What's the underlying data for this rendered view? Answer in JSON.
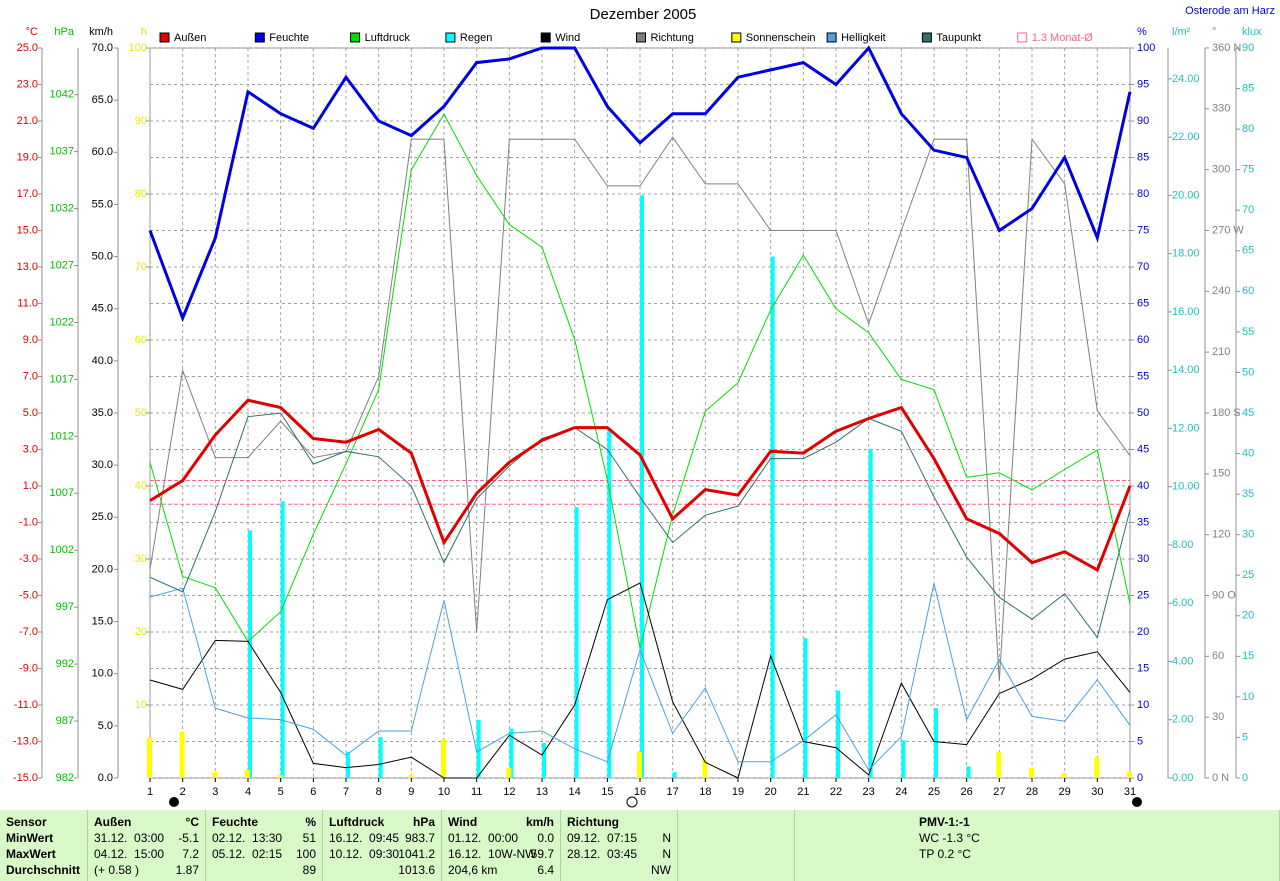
{
  "chart_data": {
    "type": "line",
    "title": "Dezember 2005",
    "location": "Osterode am Harz",
    "x": [
      1,
      2,
      3,
      4,
      5,
      6,
      7,
      8,
      9,
      10,
      11,
      12,
      13,
      14,
      15,
      16,
      17,
      18,
      19,
      20,
      21,
      22,
      23,
      24,
      25,
      26,
      27,
      28,
      29,
      30,
      31
    ],
    "xlim": [
      1,
      31
    ],
    "xticks": [
      1,
      2,
      3,
      4,
      5,
      6,
      7,
      8,
      9,
      10,
      11,
      12,
      13,
      14,
      15,
      16,
      17,
      18,
      19,
      20,
      21,
      22,
      23,
      24,
      25,
      26,
      27,
      28,
      29,
      30,
      31
    ],
    "grid": true,
    "axes": [
      {
        "unit": "°C",
        "color": "#e00000",
        "ylim": [
          -15,
          25
        ],
        "yticks": [
          {
            "value": -15,
            "label": "-15.0"
          },
          {
            "value": -13,
            "label": "-13.0"
          },
          {
            "value": -11,
            "label": "-11.0"
          },
          {
            "value": -9,
            "label": "-9.0"
          },
          {
            "value": -7,
            "label": "-7.0"
          },
          {
            "value": -5,
            "label": "-5.0"
          },
          {
            "value": -3,
            "label": "-3.0"
          },
          {
            "value": -1,
            "label": "-1.0"
          },
          {
            "value": 1,
            "label": "1.0"
          },
          {
            "value": 3,
            "label": "3.0"
          },
          {
            "value": 5,
            "label": "5.0"
          },
          {
            "value": 7,
            "label": "7.0"
          },
          {
            "value": 9,
            "label": "9.0"
          },
          {
            "value": 11,
            "label": "11.0"
          },
          {
            "value": 13,
            "label": "13.0"
          },
          {
            "value": 15,
            "label": "15.0"
          },
          {
            "value": 17,
            "label": "17.0"
          },
          {
            "value": 19,
            "label": "19.0"
          },
          {
            "value": 21,
            "label": "21.0"
          },
          {
            "value": 23,
            "label": "23.0"
          },
          {
            "value": 25,
            "label": "25.0"
          }
        ]
      },
      {
        "unit": "hPa",
        "color": "#00c000",
        "ylim": [
          982,
          1046.1
        ],
        "yticks": [
          982,
          987,
          992,
          997,
          1002,
          1007,
          1012,
          1017,
          1022,
          1027,
          1032,
          1037,
          1042
        ]
      },
      {
        "unit": "km/h",
        "color": "#000000",
        "ylim": [
          0,
          70
        ],
        "yticks": [
          {
            "value": 0,
            "label": "0.0"
          },
          {
            "value": 5,
            "label": "5.0"
          },
          {
            "value": 10,
            "label": "10.0"
          },
          {
            "value": 15,
            "label": "15.0"
          },
          {
            "value": 20,
            "label": "20.0"
          },
          {
            "value": 25,
            "label": "25.0"
          },
          {
            "value": 30,
            "label": "30.0"
          },
          {
            "value": 35,
            "label": "35.0"
          },
          {
            "value": 40,
            "label": "40.0"
          },
          {
            "value": 45,
            "label": "45.0"
          },
          {
            "value": 50,
            "label": "50.0"
          },
          {
            "value": 55,
            "label": "55.0"
          },
          {
            "value": 60,
            "label": "60.0"
          },
          {
            "value": 65,
            "label": "65.0"
          },
          {
            "value": 70,
            "label": "70.0"
          }
        ]
      },
      {
        "unit": "h",
        "color": "#e8e800",
        "ylim": [
          0,
          100
        ],
        "yticks": [
          10,
          20,
          30,
          40,
          50,
          60,
          70,
          80,
          90,
          100
        ]
      },
      {
        "unit": "%",
        "color": "#0000e0",
        "ylim": [
          0,
          100
        ],
        "yticks": [
          0,
          5,
          10,
          15,
          20,
          25,
          30,
          35,
          40,
          45,
          50,
          55,
          60,
          65,
          70,
          75,
          80,
          85,
          90,
          95,
          100
        ]
      },
      {
        "unit": "l/m²",
        "color": "#20c0c0",
        "ylim": [
          0,
          25.06
        ],
        "yticks": [
          {
            "value": 0,
            "label": "0.00"
          },
          {
            "value": 2,
            "label": "2.00"
          },
          {
            "value": 4,
            "label": "4.00"
          },
          {
            "value": 6,
            "label": "6.00"
          },
          {
            "value": 8,
            "label": "8.00"
          },
          {
            "value": 10,
            "label": "10.00"
          },
          {
            "value": 12,
            "label": "12.00"
          },
          {
            "value": 14,
            "label": "14.00"
          },
          {
            "value": 16,
            "label": "16.00"
          },
          {
            "value": 18,
            "label": "18.00"
          },
          {
            "value": 20,
            "label": "20.00"
          },
          {
            "value": 22,
            "label": "22.00"
          },
          {
            "value": 24,
            "label": "24.00"
          }
        ]
      },
      {
        "unit": "°",
        "color": "#808080",
        "ylim": [
          0,
          360
        ],
        "yticks": [
          {
            "value": 0,
            "label": "0 N"
          },
          30,
          60,
          {
            "value": 90,
            "label": "90 O"
          },
          120,
          150,
          {
            "value": 180,
            "label": "180 S"
          },
          210,
          240,
          {
            "value": 270,
            "label": "270 W"
          },
          300,
          330,
          {
            "value": 360,
            "label": "360 N"
          }
        ]
      },
      {
        "unit": "klux",
        "color": "#20c0c0",
        "ylim": [
          0,
          90
        ],
        "yticks": [
          0,
          5,
          10,
          15,
          20,
          25,
          30,
          35,
          40,
          45,
          50,
          55,
          60,
          65,
          70,
          75,
          80,
          85,
          90
        ]
      }
    ],
    "series": [
      {
        "name": "Außen",
        "color": "#e00000",
        "type": "line",
        "width": 3,
        "axis": 0,
        "values": [
          0.2,
          1.3,
          3.8,
          5.7,
          5.3,
          3.6,
          3.4,
          4.1,
          2.8,
          -2.1,
          0.6,
          2.3,
          3.5,
          4.2,
          4.2,
          2.7,
          -0.8,
          0.8,
          0.5,
          2.9,
          2.8,
          4.0,
          4.7,
          5.3,
          2.5,
          -0.8,
          -1.6,
          -3.2,
          -2.6,
          -3.6,
          1.0
        ]
      },
      {
        "name": "Feuchte",
        "color": "#0000e0",
        "type": "line",
        "width": 3,
        "axis": 4,
        "values": [
          75,
          63,
          74,
          94,
          91,
          89,
          96,
          90,
          88,
          92,
          98,
          98.5,
          100,
          100,
          92,
          87,
          91,
          91,
          96,
          97,
          98,
          95,
          100,
          91,
          86,
          85,
          75,
          78,
          85,
          74,
          94
        ]
      },
      {
        "name": "Luftdruck",
        "color": "#00dd00",
        "type": "line",
        "width": 1,
        "axis": 1,
        "values": [
          1009.7,
          999.7,
          998.7,
          994,
          996.6,
          1003.4,
          1009.6,
          1016.1,
          1035.4,
          1040.3,
          1034.9,
          1030.6,
          1028.6,
          1020.5,
          1008.2,
          993.4,
          1005.1,
          1014.2,
          1016.7,
          1023.1,
          1027.9,
          1023.2,
          1021.1,
          1017,
          1016.1,
          1008.4,
          1008.8,
          1007.3,
          1009.1,
          1010.8,
          997.3
        ]
      },
      {
        "name": "Regen",
        "color": "#00ffff",
        "type": "bar",
        "axis": 5,
        "values": [
          0,
          0,
          0,
          8.5,
          9.5,
          0,
          0.9,
          1.4,
          0,
          0,
          2.0,
          1.7,
          1.2,
          9.3,
          12.0,
          20.0,
          0.2,
          0,
          0,
          17.9,
          4.8,
          3.0,
          11.3,
          1.3,
          2.4,
          0.4,
          0,
          0,
          0,
          0,
          0
        ]
      },
      {
        "name": "Wind",
        "color": "#000000",
        "type": "line",
        "width": 1,
        "axis": 2,
        "values": [
          9.4,
          8.5,
          13.2,
          13.1,
          8.2,
          1.4,
          1.0,
          1.3,
          2.0,
          0,
          0,
          4.1,
          2.2,
          7.0,
          17.1,
          18.7,
          7.3,
          1.5,
          0,
          11.7,
          3.5,
          2.9,
          0.3,
          9.1,
          3.5,
          3.2,
          8.1,
          9.5,
          11.4,
          12.1,
          8.2
        ]
      },
      {
        "name": "Richtung",
        "color": "#808080",
        "type": "line",
        "width": 1,
        "axis": 6,
        "values": [
          103,
          201,
          158,
          158,
          176,
          158,
          161,
          198,
          315,
          315,
          72,
          315,
          315,
          315,
          292,
          292,
          316,
          293,
          293,
          270,
          270,
          270,
          224,
          270,
          315,
          315,
          48,
          315,
          293,
          181,
          159
        ]
      },
      {
        "name": "Sonnenschein",
        "color": "#ffff00",
        "type": "bar",
        "axis": 3,
        "values": [
          5.5,
          6.3,
          0.8,
          1.1,
          0.4,
          0,
          0,
          0,
          0.4,
          5.2,
          0,
          1.4,
          0,
          0,
          0,
          3.6,
          0,
          2.5,
          0,
          0,
          0,
          0,
          0,
          0,
          0,
          0,
          3.6,
          1.4,
          0.7,
          2.9,
          0.8
        ]
      },
      {
        "name": "Helligkeit",
        "color": "#4aa0e0",
        "type": "line",
        "width": 1,
        "axis": 7,
        "values": [
          22.3,
          23.4,
          8.6,
          7.4,
          7.2,
          6.0,
          2.8,
          5.8,
          5.8,
          21.9,
          3.2,
          5.5,
          5.8,
          3.6,
          2.0,
          15.8,
          5.5,
          11.1,
          2.0,
          2.0,
          4.6,
          7.8,
          1.0,
          5.1,
          24.0,
          7.2,
          14.6,
          7.6,
          7.0,
          12.1,
          6.5
        ]
      },
      {
        "name": "Taupunkt",
        "color": "#307070",
        "type": "line",
        "width": 1,
        "axis": 0,
        "values": [
          -4.0,
          -4.8,
          -0.4,
          4.8,
          5.0,
          2.2,
          2.9,
          2.6,
          1.0,
          -3.2,
          0.3,
          2.1,
          3.6,
          4.2,
          3.0,
          0.4,
          -2.1,
          -0.6,
          -0.1,
          2.5,
          2.5,
          3.4,
          4.7,
          4.0,
          0.4,
          -2.9,
          -5.1,
          -6.3,
          -4.9,
          -7.3,
          -0.3
        ]
      }
    ],
    "monthly_average": {
      "name": "1.3 Monat-Ø",
      "color": "#ff6090",
      "axis": 0,
      "values": [
        1.3,
        0.0
      ]
    }
  },
  "footer": {
    "columns": [
      {
        "header": "Sensor",
        "rows": [
          {
            "left": "MinWert"
          },
          {
            "left": "MaxWert"
          },
          {
            "left": "Durchschnitt"
          }
        ]
      },
      {
        "header": "Außen",
        "unit": "°C",
        "rows": [
          {
            "left": "31.12.  03:00",
            "right": "-5.1"
          },
          {
            "left": "04.12.  15:00",
            "right": "7.2"
          },
          {
            "left": "(+ 0.58 )",
            "right": "1.87"
          }
        ]
      },
      {
        "header": "Feuchte",
        "unit": "%",
        "rows": [
          {
            "left": "02.12.  13:30",
            "right": "51"
          },
          {
            "left": "05.12.  02:15",
            "right": "100"
          },
          {
            "right": "89"
          }
        ]
      },
      {
        "header": "Luftdruck",
        "unit": "hPa",
        "rows": [
          {
            "left": "16.12.  09:45",
            "right": "983.7"
          },
          {
            "left": "10.12.  09:30",
            "right": "1041.2"
          },
          {
            "right": "1013.6"
          }
        ]
      },
      {
        "header": "Wind",
        "unit": "km/h",
        "rows": [
          {
            "left": "01.12.  00:00",
            "right": "0.0"
          },
          {
            "left": "16.12.  10W-NW",
            "right": "59.7"
          },
          {
            "left": "204,6 km",
            "right": "6.4"
          }
        ]
      },
      {
        "header": "Richtung",
        "rows": [
          {
            "left": "09.12.  07:15",
            "right": "N"
          },
          {
            "left": "28.12.  03:45",
            "right": "N"
          },
          {
            "right": "NW"
          }
        ]
      },
      {
        "rows": []
      },
      {
        "header": "PMV-1:-1",
        "rows": [
          {
            "left": "WC -1.3 °C"
          },
          {
            "left": "TP 0.2 °C"
          }
        ]
      }
    ]
  }
}
